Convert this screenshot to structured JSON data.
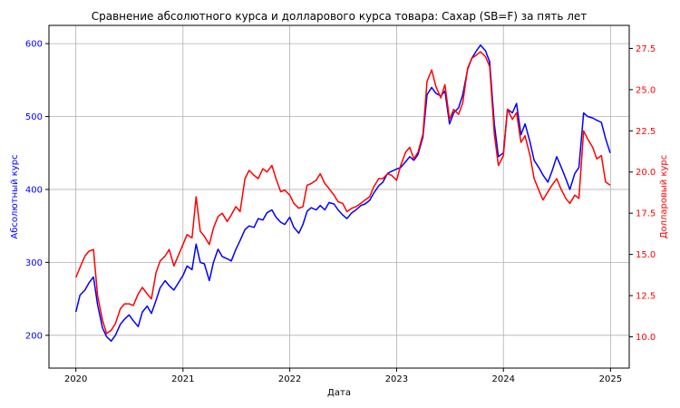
{
  "chart_data": {
    "type": "line",
    "title": "Сравнение абсолютного курса и долларового курса товара: Сахар (SB=F) за пять лет",
    "xlabel": "Дата",
    "ylabel_left": "Абсолютный курс",
    "ylabel_right": "Долларовый курс",
    "xlim": [
      "2019-10-01",
      "2025-03-06"
    ],
    "ylim_left": [
      155,
      625
    ],
    "ylim_right": [
      8.1,
      28.9
    ],
    "x_ticks": [
      "2020",
      "2021",
      "2022",
      "2023",
      "2024",
      "2025"
    ],
    "y_ticks_left": [
      "200",
      "300",
      "400",
      "500",
      "600"
    ],
    "y_ticks_right": [
      "10.0",
      "12.5",
      "15.0",
      "17.5",
      "20.0",
      "22.5",
      "25.0",
      "27.5"
    ],
    "grid": true,
    "colors": {
      "left_axis": "#0000ff",
      "right_axis": "#ff0000"
    },
    "series": [
      {
        "axis": "left",
        "color": "#0000ff",
        "points": [
          [
            "2020-01-01",
            232
          ],
          [
            "2020-01-15",
            255
          ],
          [
            "2020-02-01",
            262
          ],
          [
            "2020-02-15",
            272
          ],
          [
            "2020-03-01",
            280
          ],
          [
            "2020-03-15",
            242
          ],
          [
            "2020-04-01",
            210
          ],
          [
            "2020-04-15",
            198
          ],
          [
            "2020-05-01",
            192
          ],
          [
            "2020-05-15",
            200
          ],
          [
            "2020-06-01",
            215
          ],
          [
            "2020-06-15",
            222
          ],
          [
            "2020-07-01",
            228
          ],
          [
            "2020-07-15",
            220
          ],
          [
            "2020-08-01",
            212
          ],
          [
            "2020-08-15",
            232
          ],
          [
            "2020-09-01",
            240
          ],
          [
            "2020-09-15",
            230
          ],
          [
            "2020-10-01",
            248
          ],
          [
            "2020-10-15",
            265
          ],
          [
            "2020-11-01",
            275
          ],
          [
            "2020-11-15",
            268
          ],
          [
            "2020-12-01",
            262
          ],
          [
            "2021-01-01",
            282
          ],
          [
            "2021-01-15",
            295
          ],
          [
            "2021-02-01",
            290
          ],
          [
            "2021-02-15",
            325
          ],
          [
            "2021-03-01",
            300
          ],
          [
            "2021-03-15",
            298
          ],
          [
            "2021-04-01",
            275
          ],
          [
            "2021-04-15",
            300
          ],
          [
            "2021-05-01",
            318
          ],
          [
            "2021-05-15",
            308
          ],
          [
            "2021-06-01",
            305
          ],
          [
            "2021-06-15",
            302
          ],
          [
            "2021-07-01",
            318
          ],
          [
            "2021-07-15",
            330
          ],
          [
            "2021-08-01",
            345
          ],
          [
            "2021-08-15",
            350
          ],
          [
            "2021-09-01",
            348
          ],
          [
            "2021-09-15",
            360
          ],
          [
            "2021-10-01",
            358
          ],
          [
            "2021-10-15",
            368
          ],
          [
            "2021-11-01",
            372
          ],
          [
            "2021-11-15",
            362
          ],
          [
            "2021-12-01",
            355
          ],
          [
            "2021-12-15",
            352
          ],
          [
            "2022-01-01",
            362
          ],
          [
            "2022-01-15",
            348
          ],
          [
            "2022-02-01",
            340
          ],
          [
            "2022-02-15",
            352
          ],
          [
            "2022-03-01",
            370
          ],
          [
            "2022-03-15",
            375
          ],
          [
            "2022-04-01",
            372
          ],
          [
            "2022-04-15",
            378
          ],
          [
            "2022-05-01",
            372
          ],
          [
            "2022-05-15",
            382
          ],
          [
            "2022-06-01",
            380
          ],
          [
            "2022-06-15",
            372
          ],
          [
            "2022-07-01",
            365
          ],
          [
            "2022-07-15",
            360
          ],
          [
            "2022-08-01",
            368
          ],
          [
            "2022-08-15",
            372
          ],
          [
            "2022-09-01",
            378
          ],
          [
            "2022-09-15",
            380
          ],
          [
            "2022-10-01",
            385
          ],
          [
            "2022-10-15",
            395
          ],
          [
            "2022-11-01",
            405
          ],
          [
            "2022-11-15",
            410
          ],
          [
            "2022-12-01",
            422
          ],
          [
            "2022-12-15",
            425
          ],
          [
            "2023-01-01",
            428
          ],
          [
            "2023-01-15",
            430
          ],
          [
            "2023-02-01",
            438
          ],
          [
            "2023-02-15",
            445
          ],
          [
            "2023-03-01",
            440
          ],
          [
            "2023-03-15",
            448
          ],
          [
            "2023-04-01",
            472
          ],
          [
            "2023-04-15",
            530
          ],
          [
            "2023-05-01",
            540
          ],
          [
            "2023-05-15",
            532
          ],
          [
            "2023-06-01",
            528
          ],
          [
            "2023-06-15",
            535
          ],
          [
            "2023-07-01",
            490
          ],
          [
            "2023-07-15",
            505
          ],
          [
            "2023-08-01",
            512
          ],
          [
            "2023-08-15",
            530
          ],
          [
            "2023-09-01",
            565
          ],
          [
            "2023-09-15",
            580
          ],
          [
            "2023-10-01",
            590
          ],
          [
            "2023-10-15",
            598
          ],
          [
            "2023-11-01",
            590
          ],
          [
            "2023-11-15",
            575
          ],
          [
            "2023-12-01",
            490
          ],
          [
            "2023-12-15",
            445
          ],
          [
            "2024-01-01",
            450
          ],
          [
            "2024-01-15",
            510
          ],
          [
            "2024-02-01",
            505
          ],
          [
            "2024-02-15",
            518
          ],
          [
            "2024-03-01",
            475
          ],
          [
            "2024-03-15",
            490
          ],
          [
            "2024-04-01",
            465
          ],
          [
            "2024-04-15",
            440
          ],
          [
            "2024-05-01",
            430
          ],
          [
            "2024-05-15",
            420
          ],
          [
            "2024-06-01",
            410
          ],
          [
            "2024-06-15",
            425
          ],
          [
            "2024-07-01",
            445
          ],
          [
            "2024-07-15",
            432
          ],
          [
            "2024-08-01",
            415
          ],
          [
            "2024-08-15",
            400
          ],
          [
            "2024-09-01",
            422
          ],
          [
            "2024-09-15",
            430
          ],
          [
            "2024-10-01",
            505
          ],
          [
            "2024-10-15",
            500
          ],
          [
            "2024-11-01",
            498
          ],
          [
            "2024-11-15",
            495
          ],
          [
            "2024-12-01",
            492
          ],
          [
            "2024-12-15",
            470
          ],
          [
            "2024-12-31",
            450
          ]
        ]
      },
      {
        "axis": "right",
        "color": "#ff0000",
        "points": [
          [
            "2020-01-01",
            13.6
          ],
          [
            "2020-01-15",
            14.2
          ],
          [
            "2020-02-01",
            14.9
          ],
          [
            "2020-02-15",
            15.2
          ],
          [
            "2020-03-01",
            15.3
          ],
          [
            "2020-03-15",
            12.5
          ],
          [
            "2020-04-01",
            11.0
          ],
          [
            "2020-04-15",
            10.2
          ],
          [
            "2020-05-01",
            10.4
          ],
          [
            "2020-05-15",
            10.8
          ],
          [
            "2020-06-01",
            11.7
          ],
          [
            "2020-06-15",
            12.0
          ],
          [
            "2020-07-01",
            12.0
          ],
          [
            "2020-07-15",
            11.9
          ],
          [
            "2020-08-01",
            12.6
          ],
          [
            "2020-08-15",
            13.0
          ],
          [
            "2020-09-01",
            12.6
          ],
          [
            "2020-09-15",
            12.3
          ],
          [
            "2020-10-01",
            13.9
          ],
          [
            "2020-10-15",
            14.6
          ],
          [
            "2020-11-01",
            14.9
          ],
          [
            "2020-11-15",
            15.3
          ],
          [
            "2020-12-01",
            14.3
          ],
          [
            "2021-01-01",
            15.6
          ],
          [
            "2021-01-15",
            16.2
          ],
          [
            "2021-02-01",
            16.0
          ],
          [
            "2021-02-15",
            18.5
          ],
          [
            "2021-03-01",
            16.4
          ],
          [
            "2021-03-15",
            16.1
          ],
          [
            "2021-04-01",
            15.6
          ],
          [
            "2021-04-15",
            16.6
          ],
          [
            "2021-05-01",
            17.3
          ],
          [
            "2021-05-15",
            17.5
          ],
          [
            "2021-06-01",
            17.0
          ],
          [
            "2021-06-15",
            17.4
          ],
          [
            "2021-07-01",
            17.9
          ],
          [
            "2021-07-15",
            17.6
          ],
          [
            "2021-08-01",
            19.6
          ],
          [
            "2021-08-15",
            20.1
          ],
          [
            "2021-09-01",
            19.8
          ],
          [
            "2021-09-15",
            19.6
          ],
          [
            "2021-10-01",
            20.2
          ],
          [
            "2021-10-15",
            20.0
          ],
          [
            "2021-11-01",
            20.4
          ],
          [
            "2021-11-15",
            19.6
          ],
          [
            "2021-12-01",
            18.8
          ],
          [
            "2021-12-15",
            18.9
          ],
          [
            "2022-01-01",
            18.6
          ],
          [
            "2022-01-15",
            18.1
          ],
          [
            "2022-02-01",
            17.8
          ],
          [
            "2022-02-15",
            17.9
          ],
          [
            "2022-03-01",
            19.2
          ],
          [
            "2022-03-15",
            19.3
          ],
          [
            "2022-04-01",
            19.5
          ],
          [
            "2022-04-15",
            19.9
          ],
          [
            "2022-05-01",
            19.3
          ],
          [
            "2022-05-15",
            19.0
          ],
          [
            "2022-06-01",
            18.6
          ],
          [
            "2022-06-15",
            18.2
          ],
          [
            "2022-07-01",
            18.1
          ],
          [
            "2022-07-15",
            17.6
          ],
          [
            "2022-08-01",
            17.8
          ],
          [
            "2022-08-15",
            17.9
          ],
          [
            "2022-09-01",
            18.1
          ],
          [
            "2022-09-15",
            18.3
          ],
          [
            "2022-10-01",
            18.5
          ],
          [
            "2022-10-15",
            19.1
          ],
          [
            "2022-11-01",
            19.6
          ],
          [
            "2022-11-15",
            19.6
          ],
          [
            "2022-12-01",
            19.9
          ],
          [
            "2022-12-15",
            19.8
          ],
          [
            "2023-01-01",
            19.5
          ],
          [
            "2023-01-15",
            20.4
          ],
          [
            "2023-02-01",
            21.2
          ],
          [
            "2023-02-15",
            21.5
          ],
          [
            "2023-03-01",
            20.8
          ],
          [
            "2023-03-15",
            21.2
          ],
          [
            "2023-04-01",
            22.3
          ],
          [
            "2023-04-15",
            25.5
          ],
          [
            "2023-05-01",
            26.2
          ],
          [
            "2023-05-15",
            25.2
          ],
          [
            "2023-06-01",
            24.5
          ],
          [
            "2023-06-15",
            25.3
          ],
          [
            "2023-07-01",
            23.2
          ],
          [
            "2023-07-15",
            23.8
          ],
          [
            "2023-08-01",
            23.5
          ],
          [
            "2023-08-15",
            24.2
          ],
          [
            "2023-09-01",
            26.3
          ],
          [
            "2023-09-15",
            26.9
          ],
          [
            "2023-10-01",
            27.1
          ],
          [
            "2023-10-15",
            27.3
          ],
          [
            "2023-11-01",
            27.0
          ],
          [
            "2023-11-15",
            26.4
          ],
          [
            "2023-12-01",
            22.3
          ],
          [
            "2023-12-15",
            20.4
          ],
          [
            "2024-01-01",
            21.0
          ],
          [
            "2024-01-15",
            23.8
          ],
          [
            "2024-02-01",
            23.2
          ],
          [
            "2024-02-15",
            23.6
          ],
          [
            "2024-03-01",
            21.8
          ],
          [
            "2024-03-15",
            22.2
          ],
          [
            "2024-04-01",
            21.0
          ],
          [
            "2024-04-15",
            19.6
          ],
          [
            "2024-05-01",
            18.9
          ],
          [
            "2024-05-15",
            18.3
          ],
          [
            "2024-06-01",
            18.8
          ],
          [
            "2024-06-15",
            19.2
          ],
          [
            "2024-07-01",
            19.6
          ],
          [
            "2024-07-15",
            19.0
          ],
          [
            "2024-08-01",
            18.4
          ],
          [
            "2024-08-15",
            18.1
          ],
          [
            "2024-09-01",
            18.6
          ],
          [
            "2024-09-15",
            18.4
          ],
          [
            "2024-10-01",
            22.5
          ],
          [
            "2024-10-15",
            22.0
          ],
          [
            "2024-11-01",
            21.5
          ],
          [
            "2024-11-15",
            20.8
          ],
          [
            "2024-12-01",
            21.0
          ],
          [
            "2024-12-15",
            19.4
          ],
          [
            "2024-12-31",
            19.2
          ]
        ]
      }
    ]
  }
}
